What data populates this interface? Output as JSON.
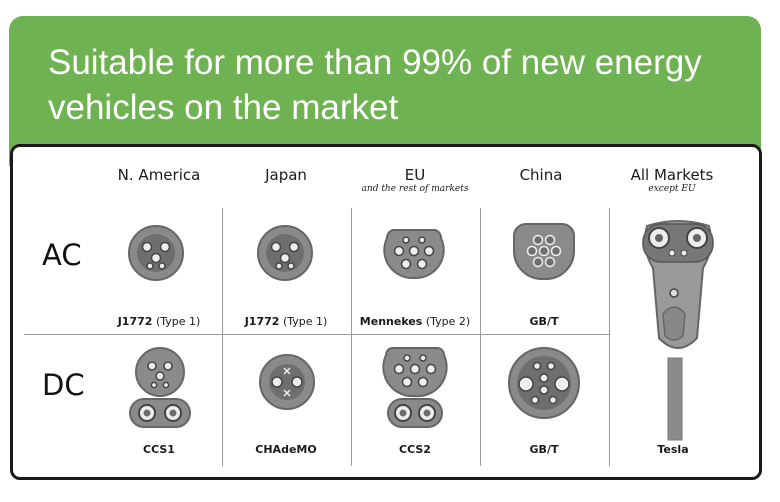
{
  "headline": "Suitable for more than 99% of new energy vehicles on the market",
  "columns": [
    {
      "name": "N. America",
      "sub": ""
    },
    {
      "name": "Japan",
      "sub": ""
    },
    {
      "name": "EU",
      "sub": "and the rest of markets"
    },
    {
      "name": "China",
      "sub": ""
    },
    {
      "name": "All Markets",
      "sub": "except EU"
    }
  ],
  "rows": {
    "ac": "AC",
    "dc": "DC"
  },
  "ac_connectors": [
    {
      "name": "J1772",
      "note": "(Type 1)"
    },
    {
      "name": "J1772",
      "note": "(Type 1)"
    },
    {
      "name": "Mennekes",
      "note": "(Type 2)"
    },
    {
      "name": "GB/T",
      "note": ""
    }
  ],
  "dc_connectors": [
    {
      "name": "CCS1"
    },
    {
      "name": "CHAdeMO"
    },
    {
      "name": "CCS2"
    },
    {
      "name": "GB/T"
    },
    {
      "name": "Tesla"
    }
  ],
  "colors": {
    "banner": "#6fb252",
    "connector": "#8a8a8a",
    "connector_dark": "#555555"
  }
}
